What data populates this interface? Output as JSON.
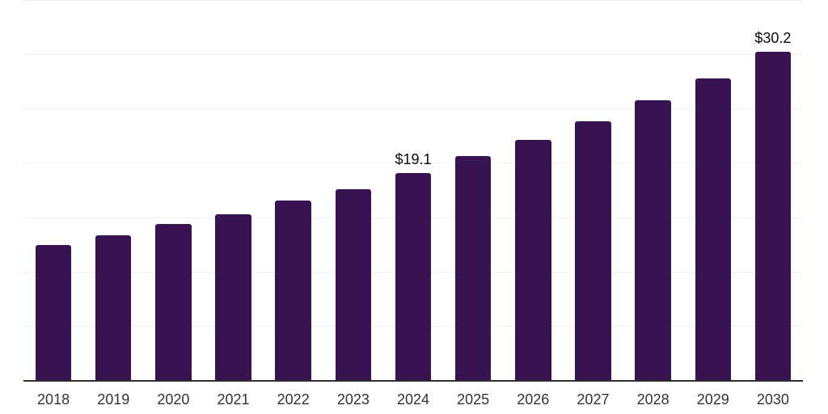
{
  "chart_data": {
    "type": "bar",
    "title": "",
    "xlabel": "",
    "ylabel": "",
    "categories": [
      "2018",
      "2019",
      "2020",
      "2021",
      "2022",
      "2023",
      "2024",
      "2025",
      "2026",
      "2027",
      "2028",
      "2029",
      "2030"
    ],
    "values": [
      12.4,
      13.3,
      14.4,
      15.3,
      16.5,
      17.6,
      19.1,
      20.6,
      22.1,
      23.8,
      25.8,
      27.8,
      30.2
    ],
    "data_labels": [
      {
        "category": "2024",
        "text": "$19.1"
      },
      {
        "category": "2030",
        "text": "$30.2"
      }
    ],
    "ylim": [
      0,
      35
    ],
    "grid": {
      "visible": true,
      "step": 5,
      "orientation": "horizontal"
    },
    "legend": "none",
    "y_axis_tick_labels": "none"
  },
  "colors": {
    "bar": "#371351",
    "axis_line": "#2e2e2e",
    "gridline": "#f0f0f2",
    "tick_label": "#333333",
    "data_label": "#0a0a0a",
    "background": "#ffffff"
  }
}
